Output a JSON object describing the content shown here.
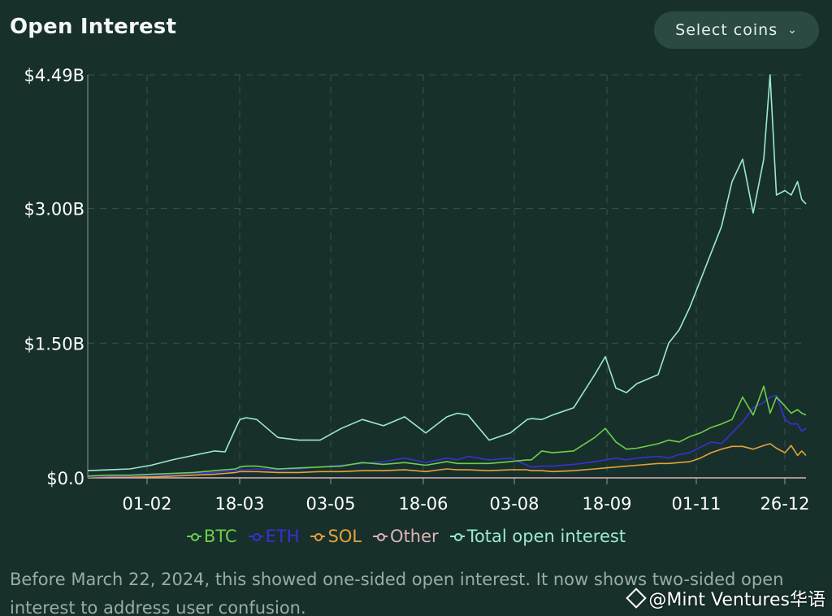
{
  "header": {
    "title": "Open Interest",
    "select_label": "Select coins",
    "select_icon": "chevron-down-icon"
  },
  "footnote": "Before March 22, 2024, this showed one-sided open interest. It now shows two-sided open interest to address user confusion.",
  "watermark": "@Mint Ventures华语",
  "colors": {
    "background": "#17302b",
    "grid": "#3b524c",
    "axis_text": "#ffffff",
    "BTC": "#6fcf4a",
    "ETH": "#3a2fd6",
    "SOL": "#e6a13a",
    "Other": "#e0b2b8",
    "Total": "#9de8d2"
  },
  "chart_data": {
    "type": "line",
    "title": "Open Interest",
    "x_tick_labels": [
      "01-02",
      "18-03",
      "03-05",
      "18-06",
      "03-08",
      "18-09",
      "01-11",
      "26-12"
    ],
    "y_tick_labels": [
      "$0.0",
      "$1.50B",
      "$3.00B",
      "$4.49B"
    ],
    "y_ticks": [
      0,
      1.5,
      3.0,
      4.49
    ],
    "ylim": [
      0,
      4.49
    ],
    "grid": true,
    "legend_position": "bottom",
    "x_days": [
      0,
      10,
      20,
      30,
      40,
      50,
      60,
      65,
      70,
      72,
      75,
      80,
      90,
      100,
      110,
      120,
      130,
      140,
      150,
      160,
      170,
      175,
      180,
      190,
      200,
      208,
      210,
      215,
      220,
      230,
      240,
      245,
      250,
      255,
      260,
      270,
      275,
      280,
      285,
      290,
      295,
      300,
      305,
      310,
      315,
      320,
      323,
      326,
      330,
      333,
      336,
      338,
      340
    ],
    "series": [
      {
        "name": "BTC",
        "values": [
          0.02,
          0.03,
          0.03,
          0.04,
          0.05,
          0.06,
          0.08,
          0.09,
          0.1,
          0.12,
          0.13,
          0.13,
          0.1,
          0.11,
          0.12,
          0.13,
          0.17,
          0.15,
          0.17,
          0.14,
          0.18,
          0.16,
          0.16,
          0.16,
          0.18,
          0.2,
          0.2,
          0.3,
          0.28,
          0.3,
          0.45,
          0.55,
          0.4,
          0.32,
          0.33,
          0.38,
          0.42,
          0.4,
          0.46,
          0.5,
          0.56,
          0.6,
          0.65,
          0.9,
          0.7,
          1.02,
          0.72,
          0.9,
          0.8,
          0.72,
          0.76,
          0.72,
          0.7
        ]
      },
      {
        "name": "ETH",
        "values": [
          0.01,
          0.02,
          0.02,
          0.03,
          0.04,
          0.05,
          0.06,
          0.07,
          0.08,
          0.09,
          0.09,
          0.1,
          0.09,
          0.1,
          0.12,
          0.14,
          0.16,
          0.18,
          0.22,
          0.17,
          0.22,
          0.2,
          0.24,
          0.2,
          0.22,
          0.14,
          0.12,
          0.13,
          0.13,
          0.15,
          0.18,
          0.2,
          0.22,
          0.2,
          0.22,
          0.24,
          0.22,
          0.26,
          0.28,
          0.34,
          0.4,
          0.38,
          0.5,
          0.62,
          0.78,
          0.84,
          0.9,
          0.92,
          0.65,
          0.6,
          0.6,
          0.52,
          0.55
        ]
      },
      {
        "name": "SOL",
        "values": [
          0.0,
          0.01,
          0.01,
          0.01,
          0.02,
          0.03,
          0.04,
          0.05,
          0.06,
          0.07,
          0.07,
          0.07,
          0.06,
          0.06,
          0.07,
          0.07,
          0.08,
          0.08,
          0.09,
          0.07,
          0.1,
          0.09,
          0.09,
          0.08,
          0.09,
          0.09,
          0.08,
          0.08,
          0.07,
          0.08,
          0.1,
          0.11,
          0.12,
          0.13,
          0.14,
          0.16,
          0.16,
          0.17,
          0.18,
          0.22,
          0.28,
          0.32,
          0.35,
          0.35,
          0.32,
          0.36,
          0.38,
          0.33,
          0.28,
          0.36,
          0.25,
          0.3,
          0.25
        ]
      },
      {
        "name": "Other",
        "values": [
          0.0,
          0.0,
          0.0,
          0.0,
          0.0,
          0.0,
          0.0,
          0.0,
          0.0,
          0.0,
          0.0,
          0.0,
          0.0,
          0.0,
          0.0,
          0.0,
          0.0,
          0.0,
          0.0,
          0.0,
          0.0,
          0.0,
          0.0,
          0.0,
          0.0,
          0.0,
          0.0,
          0.0,
          0.0,
          0.0,
          0.0,
          0.0,
          0.0,
          0.0,
          0.0,
          0.0,
          0.0,
          0.0,
          0.0,
          0.0,
          0.0,
          0.0,
          0.0,
          0.0,
          0.0,
          0.0,
          0.0,
          0.0,
          0.0,
          0.0,
          0.0,
          0.0,
          0.0
        ]
      },
      {
        "name": "Total open interest",
        "values": [
          0.08,
          0.09,
          0.1,
          0.14,
          0.2,
          0.25,
          0.3,
          0.29,
          0.55,
          0.65,
          0.67,
          0.65,
          0.45,
          0.42,
          0.42,
          0.55,
          0.65,
          0.58,
          0.68,
          0.5,
          0.68,
          0.72,
          0.7,
          0.42,
          0.5,
          0.65,
          0.66,
          0.65,
          0.7,
          0.78,
          1.15,
          1.35,
          1.0,
          0.95,
          1.05,
          1.15,
          1.5,
          1.65,
          1.9,
          2.2,
          2.5,
          2.8,
          3.3,
          3.55,
          2.95,
          3.55,
          4.49,
          3.15,
          3.2,
          3.15,
          3.3,
          3.1,
          3.05
        ]
      }
    ]
  }
}
